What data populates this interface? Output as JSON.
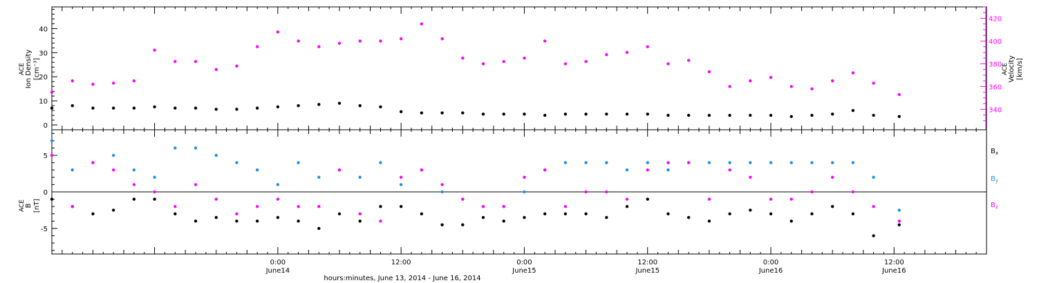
{
  "colors": {
    "density": "#000000",
    "velocity": "#ff00ff",
    "bx": "#000000",
    "by": "#1e8fe6",
    "bz": "#ff00ff"
  },
  "xaxis": {
    "label": "hours:minutes, June 13, 2014 - June 16, 2014",
    "ticks": [
      {
        "time": "0:00",
        "date": "June14",
        "hours": 24
      },
      {
        "time": "12:00",
        "date": "",
        "hours": 36
      },
      {
        "time": "0:00",
        "date": "June15",
        "hours": 48
      },
      {
        "time": "12:00",
        "date": "June15",
        "hours": 60
      },
      {
        "time": "0:00",
        "date": "June16",
        "hours": 72
      },
      {
        "time": "12:00",
        "date": "June16",
        "hours": 84
      }
    ]
  },
  "chart_data": [
    {
      "type": "scatter",
      "panel": "top",
      "ylabel_left": [
        "ACE",
        "Ion Density",
        "[cm⁻³]"
      ],
      "ylabel_right": [
        "ACE",
        "Velocity",
        "[km/s]"
      ],
      "xlim_hours": [
        2.0,
        93.0
      ],
      "ylim_left": [
        -2,
        49
      ],
      "ylim_right": [
        322,
        430
      ],
      "left_ticks": [
        0,
        10,
        20,
        30,
        40
      ],
      "right_ticks": [
        340,
        360,
        380,
        400,
        420
      ],
      "series": [
        {
          "name": "Ion Density",
          "axis": "left",
          "x": [
            2,
            4,
            6,
            8,
            10,
            12,
            14,
            16,
            18,
            20,
            22,
            24,
            26,
            28,
            30,
            32,
            34,
            36,
            38,
            40,
            42,
            44,
            46,
            48,
            50,
            52,
            54,
            56,
            58,
            60,
            62,
            64,
            66,
            68,
            70,
            72,
            74,
            76,
            78,
            80,
            82,
            84.5
          ],
          "y": [
            7,
            8,
            7,
            7,
            7,
            7.5,
            7,
            7,
            6.5,
            6.5,
            7,
            7.5,
            8,
            8.5,
            9,
            8,
            7.5,
            5.5,
            5,
            5,
            5,
            4.5,
            4.5,
            4.5,
            4,
            4.5,
            4.5,
            4.5,
            4.5,
            4.5,
            4,
            4,
            4,
            4,
            4,
            4,
            3.5,
            4,
            4.5,
            6,
            4,
            3.5
          ]
        },
        {
          "name": "Velocity",
          "axis": "right",
          "x": [
            2,
            4,
            6,
            8,
            10,
            12,
            14,
            16,
            18,
            20,
            22,
            24,
            26,
            28,
            30,
            32,
            34,
            36,
            38,
            40,
            42,
            44,
            46,
            48,
            50,
            52,
            54,
            56,
            58,
            60,
            62,
            64,
            66,
            68,
            70,
            72,
            74,
            76,
            78,
            80,
            82,
            84.5
          ],
          "y": [
            355,
            365,
            362,
            363,
            365,
            392,
            382,
            382,
            375,
            378,
            395,
            408,
            400,
            395,
            398,
            400,
            400,
            402,
            415,
            402,
            385,
            380,
            382,
            385,
            400,
            380,
            382,
            388,
            390,
            395,
            380,
            383,
            373,
            360,
            365,
            368,
            360,
            358,
            365,
            372,
            363,
            353
          ]
        }
      ]
    },
    {
      "type": "scatter",
      "panel": "bottom",
      "ylabel": [
        "ACE",
        "B",
        "[nT]"
      ],
      "xlim_hours": [
        2.0,
        93.0
      ],
      "ylim": [
        -8.5,
        8.5
      ],
      "yticks": [
        -5,
        0,
        5
      ],
      "legend": [
        "Bx",
        "By",
        "Bz"
      ],
      "series": [
        {
          "name": "Bx",
          "x": [
            2,
            4,
            6,
            8,
            10,
            12,
            14,
            16,
            18,
            20,
            22,
            24,
            26,
            28,
            30,
            32,
            34,
            36,
            38,
            40,
            42,
            44,
            46,
            48,
            50,
            52,
            54,
            56,
            58,
            60,
            62,
            64,
            66,
            68,
            70,
            72,
            74,
            76,
            78,
            80,
            82,
            84.5
          ],
          "y": [
            -1,
            -2,
            -3,
            -2.5,
            -1,
            -1,
            -3,
            -4,
            -3.5,
            -4,
            -4,
            -3.5,
            -4,
            -5,
            -3,
            -4,
            -2,
            -2,
            -3,
            -4.5,
            -4.5,
            -3.5,
            -4,
            -3.5,
            -3,
            -3,
            -3,
            -3.5,
            -2,
            -1,
            -3,
            -3.5,
            -4,
            -3,
            -2.5,
            -3,
            -4,
            -3,
            -2,
            -3,
            -6,
            -4.5
          ]
        },
        {
          "name": "By",
          "x": [
            2,
            4,
            6,
            8,
            10,
            12,
            14,
            16,
            18,
            20,
            22,
            24,
            26,
            28,
            30,
            32,
            34,
            36,
            38,
            40,
            42,
            44,
            46,
            48,
            50,
            52,
            54,
            56,
            58,
            60,
            62,
            64,
            66,
            68,
            70,
            72,
            74,
            76,
            78,
            80,
            82,
            84.5
          ],
          "y": [
            7,
            3,
            4,
            5,
            3,
            2,
            6,
            6,
            5,
            4,
            3,
            1,
            4,
            2,
            3,
            2,
            4,
            1,
            3,
            0,
            -1,
            -2,
            -2,
            0,
            3,
            4,
            4,
            4,
            3,
            4,
            3,
            4,
            4,
            4,
            4,
            4,
            4,
            4,
            4,
            4,
            2,
            -2.5
          ]
        },
        {
          "name": "Bz",
          "x": [
            2,
            4,
            6,
            8,
            10,
            12,
            14,
            16,
            18,
            20,
            22,
            24,
            26,
            28,
            30,
            32,
            34,
            36,
            38,
            40,
            42,
            44,
            46,
            48,
            50,
            52,
            54,
            56,
            58,
            60,
            62,
            64,
            66,
            68,
            70,
            72,
            74,
            76,
            78,
            80,
            82,
            84.5
          ],
          "y": [
            5,
            -2,
            4,
            3,
            1,
            0,
            -2,
            1,
            -1,
            -3,
            -2,
            -1,
            -2,
            -2,
            3,
            -3,
            -4,
            2,
            3,
            1,
            -1,
            -2,
            -2,
            2,
            3,
            -2,
            0,
            0,
            -1,
            3,
            4,
            4,
            -1,
            3,
            2,
            -1,
            -1,
            0,
            2,
            0,
            -2,
            -4
          ]
        }
      ]
    }
  ]
}
